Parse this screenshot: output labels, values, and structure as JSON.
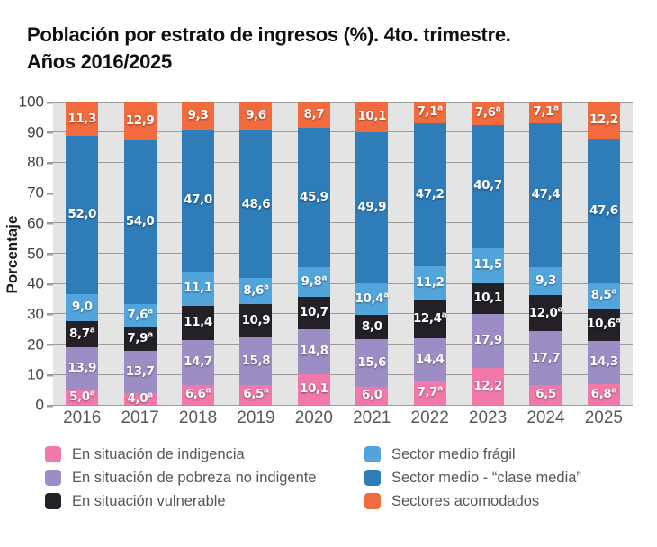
{
  "title": {
    "line1": "Población por estrato de ingresos (%). 4to. trimestre.",
    "line2": "Años 2016/2025"
  },
  "chart_data": {
    "type": "bar",
    "stacked": true,
    "title": "Población por estrato de ingresos (%). 4to. trimestre. Años 2016/2025",
    "xlabel": "",
    "ylabel": "Porcentaje",
    "ylim": [
      0,
      100
    ],
    "y_ticks": [
      0,
      10,
      20,
      30,
      40,
      50,
      60,
      70,
      80,
      90,
      100
    ],
    "grid": true,
    "legend_position": "bottom",
    "footnote_marker": "a",
    "decimal_separator": ",",
    "categories": [
      "2016",
      "2017",
      "2018",
      "2019",
      "2020",
      "2021",
      "2022",
      "2023",
      "2024",
      "2025"
    ],
    "series": [
      {
        "name": "En situación de indigencia",
        "color": "#f178aa",
        "values": [
          5.0,
          4.0,
          6.6,
          6.5,
          10.1,
          6.0,
          7.7,
          12.2,
          6.5,
          6.8
        ],
        "sup": [
          true,
          true,
          true,
          true,
          false,
          false,
          true,
          false,
          false,
          true
        ]
      },
      {
        "name": "En situación de pobreza no indigente",
        "color": "#9c8ec5",
        "values": [
          13.9,
          13.7,
          14.7,
          15.8,
          14.8,
          15.6,
          14.4,
          17.9,
          17.7,
          14.3
        ],
        "sup": [
          false,
          false,
          false,
          false,
          false,
          false,
          false,
          false,
          false,
          false
        ]
      },
      {
        "name": "En situación vulnerable",
        "color": "#242028",
        "values": [
          8.7,
          7.9,
          11.4,
          10.9,
          10.7,
          8.0,
          12.4,
          10.1,
          12.0,
          10.6
        ],
        "sup": [
          true,
          true,
          false,
          false,
          false,
          false,
          true,
          false,
          true,
          true
        ]
      },
      {
        "name": "Sector medio frágil",
        "color": "#52a5db",
        "values": [
          9.0,
          7.6,
          11.1,
          8.6,
          9.8,
          10.4,
          11.2,
          11.5,
          9.3,
          8.5
        ],
        "sup": [
          false,
          true,
          false,
          true,
          true,
          true,
          false,
          false,
          false,
          true
        ]
      },
      {
        "name": "Sector medio - “clase media”",
        "color": "#2e7cb8",
        "values": [
          52.0,
          54.0,
          47.0,
          48.6,
          45.9,
          49.9,
          47.2,
          40.7,
          47.4,
          47.6
        ],
        "sup": [
          false,
          false,
          false,
          false,
          false,
          false,
          false,
          false,
          false,
          false
        ]
      },
      {
        "name": "Sectores acomodados",
        "color": "#f26b3f",
        "values": [
          11.3,
          12.9,
          9.3,
          9.6,
          8.7,
          10.1,
          7.1,
          7.6,
          7.1,
          12.2
        ],
        "sup": [
          false,
          false,
          false,
          false,
          false,
          false,
          true,
          true,
          true,
          false
        ]
      }
    ]
  },
  "colors": {
    "plot_background": "#e4e4e4",
    "gridline": "#9b9b9b",
    "axis_text": "#414044",
    "x_label_text": "#58595b",
    "legend_text": "#55565a",
    "title_text": "#0f0f0f",
    "bar_label_text": "#ffffff"
  }
}
